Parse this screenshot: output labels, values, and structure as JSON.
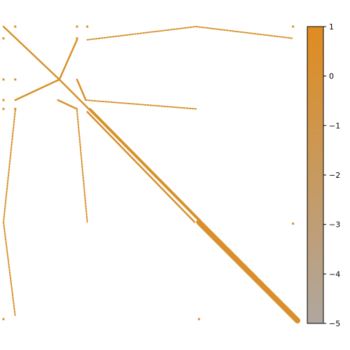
{
  "chart_data": {
    "type": "heatmap",
    "title": "",
    "xlabel": "",
    "ylabel": "",
    "description_free_render": true,
    "colorbar": {
      "ticks": [
        1,
        0,
        -1,
        -2,
        -3,
        -4,
        -5
      ],
      "tick_labels": [
        "1",
        "0",
        "−1",
        "−2",
        "−3",
        "−4",
        "−5"
      ],
      "range": [
        -5,
        1
      ],
      "color_top": "#e08c1f",
      "color_bottom": "#afa79f"
    },
    "sparse_matrix": {
      "axes_range": [
        0,
        1
      ],
      "value": 0,
      "color": "#d8902b",
      "segments": [
        {
          "from": [
            0.0,
            0.0
          ],
          "to": [
            0.19,
            0.18
          ],
          "weight": 1
        },
        {
          "from": [
            0.19,
            0.18
          ],
          "to": [
            0.285,
            0.275
          ],
          "weight": 1
        },
        {
          "from": [
            0.285,
            0.275
          ],
          "to": [
            0.66,
            0.655
          ],
          "weight": 1
        },
        {
          "from": [
            0.295,
            0.28
          ],
          "to": [
            0.67,
            0.66
          ],
          "weight": 1
        },
        {
          "from": [
            0.285,
            0.29
          ],
          "to": [
            0.65,
            0.665
          ],
          "weight": 1
        },
        {
          "from": [
            0.665,
            0.665
          ],
          "to": [
            1.0,
            1.0
          ],
          "weight": 4
        },
        {
          "from": [
            0.19,
            0.18
          ],
          "to": [
            0.25,
            0.045
          ],
          "weight": 1
        },
        {
          "from": [
            0.19,
            0.18
          ],
          "to": [
            0.04,
            0.25
          ],
          "weight": 1
        },
        {
          "from": [
            0.185,
            0.25
          ],
          "to": [
            0.25,
            0.28
          ],
          "weight": 1
        },
        {
          "from": [
            0.25,
            0.18
          ],
          "to": [
            0.28,
            0.25
          ],
          "weight": 1
        },
        {
          "from": [
            0.28,
            0.25
          ],
          "to": [
            0.655,
            0.28
          ],
          "weight": 0.6
        },
        {
          "from": [
            0.285,
            0.045
          ],
          "to": [
            0.655,
            0.0
          ],
          "weight": 0.6
        },
        {
          "from": [
            0.655,
            0.0
          ],
          "to": [
            0.985,
            0.04
          ],
          "weight": 0.6
        },
        {
          "from": [
            0.04,
            0.285
          ],
          "to": [
            0.0,
            0.665
          ],
          "weight": 0.6
        },
        {
          "from": [
            0.0,
            0.665
          ],
          "to": [
            0.04,
            0.985
          ],
          "weight": 0.6
        },
        {
          "from": [
            0.25,
            0.285
          ],
          "to": [
            0.285,
            0.665
          ],
          "weight": 0.6
        }
      ],
      "dots": [
        [
          0.04,
          0.0
        ],
        [
          0.25,
          0.0
        ],
        [
          0.285,
          0.0
        ],
        [
          0.0,
          0.04
        ],
        [
          0.25,
          0.04
        ],
        [
          0.0,
          0.18
        ],
        [
          0.04,
          0.18
        ],
        [
          0.0,
          0.25
        ],
        [
          0.0,
          0.28
        ],
        [
          0.04,
          0.28
        ],
        [
          0.985,
          0.0
        ],
        [
          0.985,
          0.67
        ],
        [
          0.0,
          0.995
        ],
        [
          0.665,
          0.995
        ],
        [
          1.0,
          1.0
        ]
      ]
    }
  }
}
